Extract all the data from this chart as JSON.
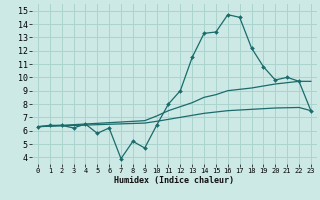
{
  "xlabel": "Humidex (Indice chaleur)",
  "bg_color": "#cce9e5",
  "grid_color": "#aad4cf",
  "line_color": "#1a6b6b",
  "xlim": [
    -0.5,
    23.5
  ],
  "ylim": [
    3.5,
    15.5
  ],
  "xticks": [
    0,
    1,
    2,
    3,
    4,
    5,
    6,
    7,
    8,
    9,
    10,
    11,
    12,
    13,
    14,
    15,
    16,
    17,
    18,
    19,
    20,
    21,
    22,
    23
  ],
  "yticks": [
    4,
    5,
    6,
    7,
    8,
    9,
    10,
    11,
    12,
    13,
    14,
    15
  ],
  "line1_x": [
    0,
    1,
    2,
    3,
    4,
    5,
    6,
    7,
    8,
    9,
    10,
    11,
    12,
    13,
    14,
    15,
    16,
    17,
    18,
    19,
    20,
    21,
    22,
    23
  ],
  "line1_y": [
    6.3,
    6.4,
    6.4,
    6.2,
    6.5,
    5.8,
    6.2,
    3.9,
    5.2,
    4.7,
    6.4,
    8.0,
    9.0,
    11.5,
    13.3,
    13.4,
    14.7,
    14.5,
    12.2,
    10.8,
    9.8,
    10.0,
    9.7,
    7.5
  ],
  "line2_x": [
    0,
    1,
    2,
    3,
    4,
    5,
    6,
    7,
    8,
    9,
    10,
    11,
    12,
    13,
    14,
    15,
    16,
    17,
    18,
    19,
    20,
    21,
    22,
    23
  ],
  "line2_y": [
    6.3,
    6.35,
    6.4,
    6.45,
    6.5,
    6.55,
    6.6,
    6.65,
    6.7,
    6.75,
    7.1,
    7.5,
    7.8,
    8.1,
    8.5,
    8.7,
    9.0,
    9.1,
    9.2,
    9.35,
    9.5,
    9.6,
    9.7,
    9.7
  ],
  "line3_x": [
    0,
    1,
    2,
    3,
    4,
    5,
    6,
    7,
    8,
    9,
    10,
    11,
    12,
    13,
    14,
    15,
    16,
    17,
    18,
    19,
    20,
    21,
    22,
    23
  ],
  "line3_y": [
    6.3,
    6.33,
    6.36,
    6.39,
    6.42,
    6.45,
    6.48,
    6.51,
    6.54,
    6.57,
    6.7,
    6.85,
    7.0,
    7.15,
    7.3,
    7.4,
    7.5,
    7.55,
    7.6,
    7.65,
    7.7,
    7.72,
    7.74,
    7.5
  ]
}
